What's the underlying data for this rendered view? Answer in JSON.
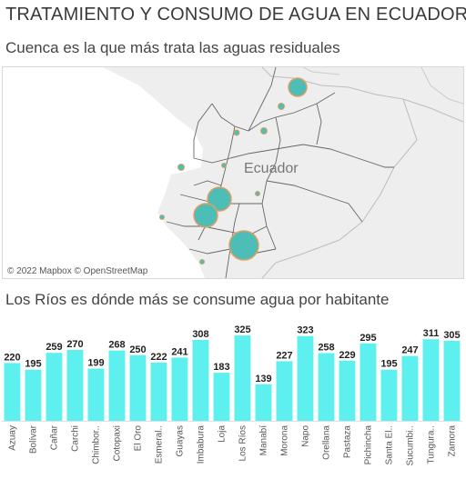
{
  "header": {
    "title": "TRATAMIENTO Y CONSUMO DE AGUA EN ECUADOR",
    "map_subtitle": "Cuenca es la que más trata las aguas residuales",
    "chart_subtitle": "Los Ríos es dónde más se consume agua por habitante"
  },
  "map": {
    "country_label": "Ecuador",
    "attribution": "© 2022 Mapbox  © OpenStreetMap",
    "colors": {
      "land": "#eeeeee",
      "sea": "#ffffff",
      "border": "#bdbdbd",
      "province": "#666666",
      "bubble": "#4dbdb8",
      "bubble_stroke": "#e0a060"
    }
  },
  "chart_data": {
    "type": "bar",
    "title": "Los Ríos es dónde más se consume agua por habitante",
    "categories": [
      "Azuay",
      "Bolívar",
      "Cañar",
      "Carchi",
      "Chimbor..",
      "Cotopaxi",
      "El Oro",
      "Esmeral..",
      "Guayas",
      "Imbabura",
      "Loja",
      "Los Ríos",
      "Manabí",
      "Morona",
      "Napo",
      "Orellana",
      "Pastaza",
      "Pichincha",
      "Santa El..",
      "Sucumbi..",
      "Tungura..",
      "Zamora"
    ],
    "values": [
      220,
      195,
      259,
      270,
      199,
      268,
      250,
      222,
      241,
      308,
      183,
      325,
      139,
      227,
      323,
      258,
      229,
      295,
      195,
      247,
      311,
      305
    ],
    "ylim": [
      0,
      360
    ],
    "color": "#5ef0ee",
    "grid": false
  }
}
